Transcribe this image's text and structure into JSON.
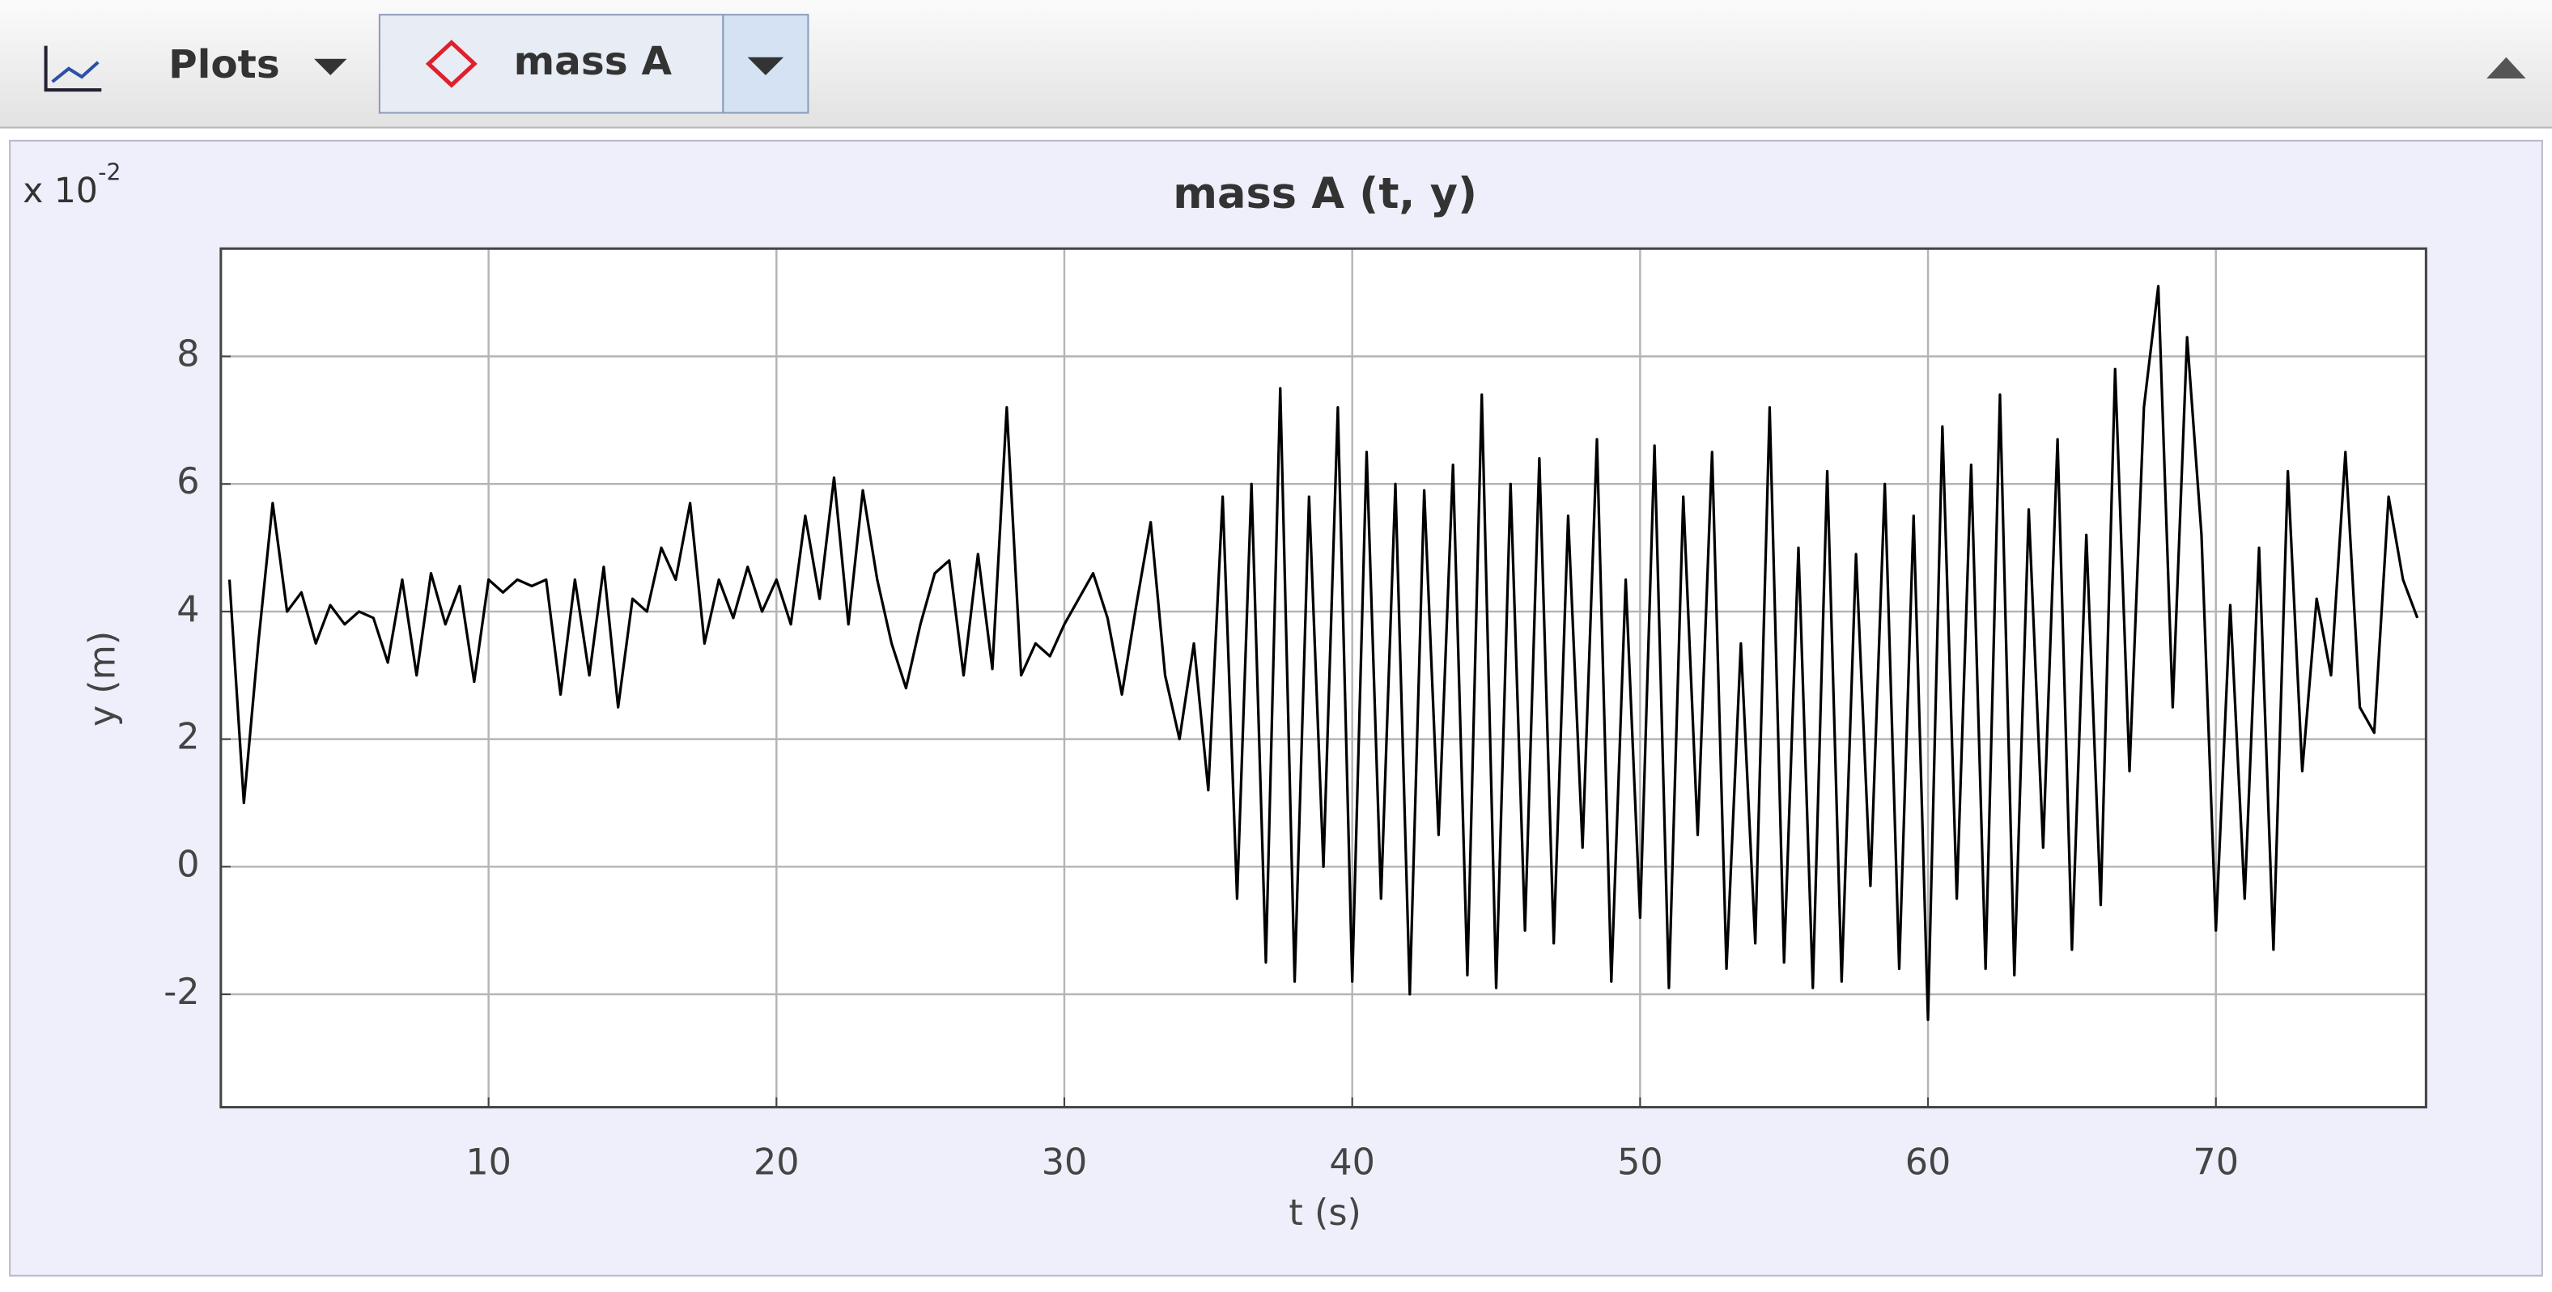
{
  "toolbar": {
    "menu": "Plots",
    "selector": "mass A"
  },
  "chart_data": {
    "type": "line",
    "title": "mass A (t, y)",
    "xlabel": "t (s)",
    "ylabel": "y (m)",
    "y_multiplier": {
      "base": "x 10",
      "exponent": "-2"
    },
    "color": "#000000",
    "grid": true,
    "xlim": [
      0.7,
      77.3
    ],
    "ylim": [
      -3.77,
      9.69
    ],
    "xticks": [
      10,
      20,
      30,
      40,
      50,
      60,
      70
    ],
    "yticks": [
      -2,
      0,
      2,
      4,
      6,
      8
    ],
    "x": [
      1,
      1.5,
      2,
      2.5,
      3,
      3.5,
      4,
      4.5,
      5,
      5.5,
      6,
      6.5,
      7,
      7.5,
      8,
      8.5,
      9,
      9.5,
      10,
      10.5,
      11,
      11.5,
      12,
      12.5,
      13,
      13.5,
      14,
      14.5,
      15,
      15.5,
      16,
      16.5,
      17,
      17.5,
      18,
      18.5,
      19,
      19.5,
      20,
      20.5,
      21,
      21.5,
      22,
      22.5,
      23,
      23.5,
      24,
      24.5,
      25,
      25.5,
      26,
      26.5,
      27,
      27.5,
      28,
      28.5,
      29,
      29.5,
      30,
      30.5,
      31,
      31.5,
      32,
      32.5,
      33,
      33.5,
      34,
      34.5,
      35,
      35.5,
      36,
      36.5,
      37,
      37.5,
      38,
      38.5,
      39,
      39.5,
      40,
      40.5,
      41,
      41.5,
      42,
      42.5,
      43,
      43.5,
      44,
      44.5,
      45,
      45.5,
      46,
      46.5,
      47,
      47.5,
      48,
      48.5,
      49,
      49.5,
      50,
      50.5,
      51,
      51.5,
      52,
      52.5,
      53,
      53.5,
      54,
      54.5,
      55,
      55.5,
      56,
      56.5,
      57,
      57.5,
      58,
      58.5,
      59,
      59.5,
      60,
      60.5,
      61,
      61.5,
      62,
      62.5,
      63,
      63.5,
      64,
      64.5,
      65,
      65.5,
      66,
      66.5,
      67,
      67.5,
      68,
      68.5,
      69,
      69.5,
      70,
      70.5,
      71,
      71.5,
      72,
      72.5,
      73,
      73.5,
      74,
      74.5,
      75,
      75.5,
      76,
      76.5,
      77
    ],
    "values": [
      4.5,
      1,
      3.5,
      5.7,
      4,
      4.3,
      3.5,
      4.1,
      3.8,
      4,
      3.9,
      3.2,
      4.5,
      3,
      4.6,
      3.8,
      4.4,
      2.9,
      4.5,
      4.3,
      4.5,
      4.4,
      4.5,
      2.7,
      4.5,
      3,
      4.7,
      2.5,
      4.2,
      4,
      5,
      4.5,
      5.7,
      3.5,
      4.5,
      3.9,
      4.7,
      4,
      4.5,
      3.8,
      5.5,
      4.2,
      6.1,
      3.8,
      5.9,
      4.5,
      3.5,
      2.8,
      3.8,
      4.6,
      4.8,
      3,
      4.9,
      3.1,
      7.2,
      3,
      3.5,
      3.3,
      3.8,
      4.2,
      4.6,
      3.9,
      2.7,
      4.1,
      5.4,
      3,
      2,
      3.5,
      1.2,
      5.8,
      -0.5,
      6,
      -1.5,
      7.5,
      -1.8,
      5.8,
      0,
      7.2,
      -1.8,
      6.5,
      -0.5,
      6,
      -2,
      5.9,
      0.5,
      6.3,
      -1.7,
      7.4,
      -1.9,
      6,
      -1,
      6.4,
      -1.2,
      5.5,
      0.3,
      6.7,
      -1.8,
      4.5,
      -0.8,
      6.6,
      -1.9,
      5.8,
      0.5,
      6.5,
      -1.6,
      3.5,
      -1.2,
      7.2,
      -1.5,
      5,
      -1.9,
      6.2,
      -1.8,
      4.9,
      -0.3,
      6,
      -1.6,
      5.5,
      -2.4,
      6.9,
      -0.5,
      6.3,
      -1.6,
      7.4,
      -1.7,
      5.6,
      0.3,
      6.7,
      -1.3,
      5.2,
      -0.6,
      7.8,
      1.5,
      7.2,
      9.1,
      2.5,
      8.3,
      5.2,
      -1,
      4.1,
      -0.5,
      5,
      -1.3,
      6.2,
      1.5,
      4.2,
      3,
      6.5,
      2.5,
      2.1,
      5.8,
      4.5,
      3.9
    ]
  }
}
